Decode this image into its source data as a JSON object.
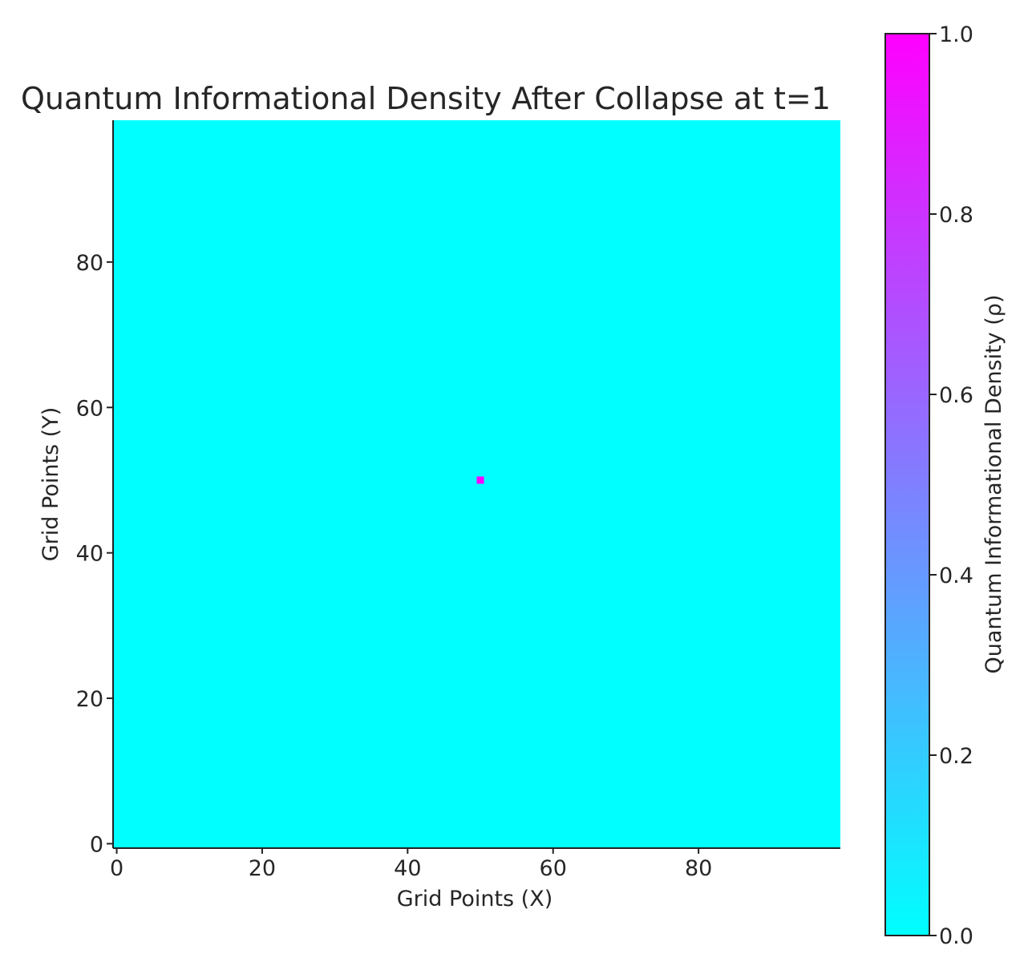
{
  "chart_data": {
    "type": "heatmap",
    "title": "Quantum Informational Density After Collapse at t=1",
    "xlabel": "Grid Points (X)",
    "ylabel": "Grid Points (Y)",
    "xlim": [
      0,
      99
    ],
    "ylim": [
      0,
      99
    ],
    "x_ticks": [
      0,
      20,
      40,
      60,
      80
    ],
    "y_ticks": [
      0,
      20,
      40,
      60,
      80
    ],
    "grid_size": [
      100,
      100
    ],
    "background_value": 0.0,
    "peaks": [
      {
        "x": 50,
        "y": 50,
        "value": 1.0
      }
    ],
    "colorbar": {
      "label": "Quantum Informational Density (ρ)",
      "range": [
        0.0,
        1.0
      ],
      "ticks": [
        0.0,
        0.2,
        0.4,
        0.6,
        0.8,
        1.0
      ],
      "tick_labels": [
        "0.0",
        "0.2",
        "0.4",
        "0.6",
        "0.8",
        "1.0"
      ],
      "colormap": "cool",
      "low_color": "#00ffff",
      "high_color": "#ff00ff"
    },
    "grid": false,
    "legend": "none"
  }
}
